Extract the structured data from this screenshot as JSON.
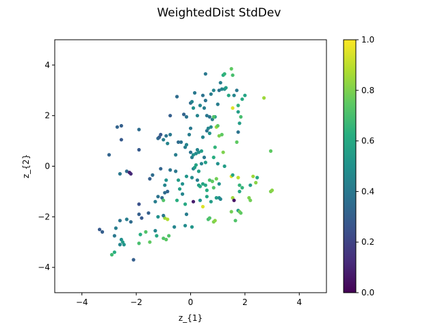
{
  "chart_data": {
    "type": "scatter",
    "title": "WeightedDist StdDev",
    "xlabel": "z_{1}",
    "ylabel": "z_{2}",
    "xlim": [
      -5,
      5
    ],
    "ylim": [
      -5,
      5
    ],
    "x_ticks": [
      -4,
      -2,
      0,
      2,
      4
    ],
    "y_ticks": [
      -4,
      -2,
      0,
      2,
      4
    ],
    "x_tick_labels": [
      "−4",
      "−2",
      "0",
      "2",
      "4"
    ],
    "y_tick_labels": [
      "−4",
      "−2",
      "0",
      "2",
      "4"
    ],
    "grid": false,
    "colormap": "viridis",
    "colorbar": {
      "range": [
        0,
        1
      ],
      "ticks": [
        0.0,
        0.2,
        0.4,
        0.6,
        0.8,
        1.0
      ],
      "tick_labels": [
        "0.0",
        "0.2",
        "0.4",
        "0.6",
        "0.8",
        "1.0"
      ]
    },
    "points": [
      [
        -3.35,
        -2.5,
        0.28
      ],
      [
        -3.25,
        -2.6,
        0.3
      ],
      [
        -2.9,
        -3.5,
        0.68
      ],
      [
        -2.8,
        -3.4,
        0.62
      ],
      [
        -2.8,
        -2.75,
        0.4
      ],
      [
        -2.75,
        -2.45,
        0.42
      ],
      [
        -2.6,
        -3.1,
        0.45
      ],
      [
        -2.55,
        -2.9,
        0.5
      ],
      [
        -2.5,
        -3.0,
        0.55
      ],
      [
        -2.45,
        -3.1,
        0.52
      ],
      [
        -2.6,
        -2.15,
        0.38
      ],
      [
        -2.35,
        -2.1,
        0.42
      ],
      [
        -2.2,
        -2.2,
        0.35
      ],
      [
        -2.1,
        -3.7,
        0.3
      ],
      [
        -1.9,
        -3.05,
        0.7
      ],
      [
        -1.85,
        -2.7,
        0.62
      ],
      [
        -1.65,
        -2.6,
        0.72
      ],
      [
        -1.5,
        -3.0,
        0.75
      ],
      [
        -1.9,
        -1.9,
        0.3
      ],
      [
        -1.8,
        -2.05,
        0.28
      ],
      [
        -1.55,
        -1.85,
        0.3
      ],
      [
        -1.3,
        -2.55,
        0.45
      ],
      [
        -1.25,
        -2.75,
        0.6
      ],
      [
        -1.0,
        -2.85,
        0.72
      ],
      [
        -0.9,
        -2.9,
        0.74
      ],
      [
        -0.8,
        -2.75,
        0.72
      ],
      [
        -0.95,
        -2.05,
        0.85
      ],
      [
        -0.85,
        -2.1,
        0.88
      ],
      [
        -1.2,
        -2.0,
        0.5
      ],
      [
        -1.0,
        -1.95,
        0.4
      ],
      [
        -0.6,
        -2.4,
        0.45
      ],
      [
        -0.2,
        -2.35,
        0.48
      ],
      [
        0.05,
        -2.4,
        0.52
      ],
      [
        -1.9,
        -1.5,
        0.25
      ],
      [
        -1.3,
        -1.4,
        0.42
      ],
      [
        -1.2,
        -1.2,
        0.38
      ],
      [
        -1.05,
        -1.25,
        0.35
      ],
      [
        -0.95,
        -1.05,
        0.35
      ],
      [
        -1.0,
        -1.35,
        0.72
      ],
      [
        -0.85,
        -1.0,
        0.32
      ],
      [
        -0.5,
        -1.35,
        0.62
      ],
      [
        -0.3,
        -1.1,
        0.45
      ],
      [
        -0.2,
        -1.5,
        0.6
      ],
      [
        -0.4,
        -0.9,
        0.55
      ],
      [
        -0.15,
        -1.9,
        0.42
      ],
      [
        0.1,
        -1.4,
        0.08
      ],
      [
        0.35,
        -1.35,
        0.5
      ],
      [
        0.45,
        -1.6,
        0.95
      ],
      [
        0.6,
        -1.2,
        0.58
      ],
      [
        0.75,
        -1.4,
        0.55
      ],
      [
        0.65,
        -2.1,
        0.7
      ],
      [
        0.7,
        -2.05,
        0.72
      ],
      [
        0.85,
        -2.2,
        0.8
      ],
      [
        0.9,
        -2.15,
        0.82
      ],
      [
        0.95,
        -1.25,
        0.55
      ],
      [
        1.05,
        -1.25,
        0.5
      ],
      [
        1.1,
        -1.3,
        0.45
      ],
      [
        1.5,
        -1.8,
        0.78
      ],
      [
        1.55,
        -1.25,
        0.85
      ],
      [
        1.6,
        -1.35,
        0.05
      ],
      [
        1.65,
        -2.15,
        0.72
      ],
      [
        1.75,
        -1.75,
        0.55
      ],
      [
        1.8,
        -1.8,
        0.78
      ],
      [
        1.85,
        -1.85,
        0.75
      ],
      [
        1.8,
        -1.0,
        0.6
      ],
      [
        1.9,
        -0.85,
        0.65
      ],
      [
        2.15,
        -1.25,
        0.8
      ],
      [
        2.2,
        -1.35,
        0.78
      ],
      [
        2.3,
        -0.4,
        0.85
      ],
      [
        2.4,
        -0.65,
        0.82
      ],
      [
        2.45,
        -0.45,
        0.6
      ],
      [
        2.2,
        -0.75,
        0.55
      ],
      [
        2.95,
        -1.0,
        0.8
      ],
      [
        3.0,
        -0.95,
        0.82
      ],
      [
        -2.6,
        -0.3,
        0.4
      ],
      [
        -2.35,
        -0.2,
        0.35
      ],
      [
        -2.25,
        -0.25,
        0.15
      ],
      [
        -2.2,
        -0.3,
        0.12
      ],
      [
        -2.25,
        -0.25,
        0.1
      ],
      [
        -1.5,
        -0.5,
        0.3
      ],
      [
        -1.4,
        -0.35,
        0.35
      ],
      [
        -1.1,
        -0.1,
        0.32
      ],
      [
        -0.95,
        -0.75,
        0.45
      ],
      [
        -0.9,
        -0.55,
        0.5
      ],
      [
        -0.75,
        -0.15,
        0.38
      ],
      [
        -0.55,
        -0.2,
        0.4
      ],
      [
        -0.45,
        -0.55,
        0.55
      ],
      [
        -0.3,
        -0.7,
        0.5
      ],
      [
        -0.15,
        -0.4,
        0.52
      ],
      [
        0.05,
        -0.45,
        0.48
      ],
      [
        0.1,
        -0.1,
        0.45
      ],
      [
        0.15,
        -0.05,
        0.55
      ],
      [
        0.2,
        0.05,
        0.58
      ],
      [
        0.25,
        -0.55,
        0.42
      ],
      [
        0.3,
        -0.75,
        0.55
      ],
      [
        0.35,
        -0.8,
        0.6
      ],
      [
        0.45,
        -0.7,
        0.58
      ],
      [
        0.55,
        -0.75,
        0.6
      ],
      [
        0.6,
        -0.95,
        0.62
      ],
      [
        0.7,
        -0.55,
        0.7
      ],
      [
        0.8,
        -0.6,
        0.75
      ],
      [
        0.85,
        -0.85,
        0.72
      ],
      [
        0.95,
        -0.5,
        0.78
      ],
      [
        1.05,
        -0.7,
        0.5
      ],
      [
        1.5,
        -0.4,
        0.95
      ],
      [
        1.75,
        -0.45,
        0.9
      ],
      [
        -3.0,
        0.45,
        0.32
      ],
      [
        -2.55,
        1.05,
        0.28
      ],
      [
        -2.7,
        1.55,
        0.32
      ],
      [
        -2.55,
        1.6,
        0.3
      ],
      [
        -1.9,
        0.65,
        0.28
      ],
      [
        -1.9,
        1.45,
        0.35
      ],
      [
        -1.2,
        1.1,
        0.35
      ],
      [
        -1.15,
        1.15,
        0.3
      ],
      [
        -1.1,
        1.25,
        0.28
      ],
      [
        -1.0,
        1.05,
        0.42
      ],
      [
        -0.9,
        1.2,
        0.38
      ],
      [
        -0.85,
        0.9,
        0.45
      ],
      [
        -0.75,
        1.25,
        0.4
      ],
      [
        -0.55,
        0.45,
        0.42
      ],
      [
        -0.45,
        0.95,
        0.35
      ],
      [
        -0.35,
        0.95,
        0.38
      ],
      [
        -0.2,
        0.75,
        0.42
      ],
      [
        -0.15,
        0.85,
        0.45
      ],
      [
        0.0,
        0.55,
        0.38
      ],
      [
        0.05,
        0.35,
        0.42
      ],
      [
        0.1,
        0.45,
        0.5
      ],
      [
        0.2,
        0.5,
        0.48
      ],
      [
        0.25,
        0.65,
        0.45
      ],
      [
        0.3,
        0.55,
        0.5
      ],
      [
        0.4,
        0.6,
        0.55
      ],
      [
        0.45,
        1.15,
        0.45
      ],
      [
        0.5,
        0.35,
        0.4
      ],
      [
        0.55,
        0.15,
        0.55
      ],
      [
        0.6,
        1.4,
        0.38
      ],
      [
        0.65,
        1.5,
        0.45
      ],
      [
        0.7,
        1.3,
        0.5
      ],
      [
        0.75,
        1.55,
        0.48
      ],
      [
        0.8,
        1.85,
        0.42
      ],
      [
        0.9,
        1.95,
        0.55
      ],
      [
        0.95,
        1.55,
        0.85
      ],
      [
        1.0,
        1.6,
        0.75
      ],
      [
        1.05,
        1.2,
        0.8
      ],
      [
        1.15,
        1.25,
        0.75
      ],
      [
        1.2,
        0.55,
        0.8
      ],
      [
        0.9,
        0.75,
        0.65
      ],
      [
        0.85,
        0.35,
        0.62
      ],
      [
        0.5,
        2.3,
        0.42
      ],
      [
        0.55,
        2.6,
        0.38
      ],
      [
        0.6,
        2.0,
        0.4
      ],
      [
        0.7,
        1.95,
        0.38
      ],
      [
        0.85,
        1.95,
        0.72
      ],
      [
        -0.05,
        1.25,
        0.42
      ],
      [
        0.0,
        1.5,
        0.4
      ],
      [
        -0.15,
        1.95,
        0.38
      ],
      [
        -0.25,
        2.05,
        0.32
      ],
      [
        0.0,
        2.5,
        0.35
      ],
      [
        0.05,
        2.55,
        0.45
      ],
      [
        0.1,
        2.3,
        0.5
      ],
      [
        0.15,
        2.9,
        0.4
      ],
      [
        0.25,
        2.0,
        0.45
      ],
      [
        0.35,
        2.4,
        0.45
      ],
      [
        -0.5,
        2.75,
        0.35
      ],
      [
        -0.75,
        2.0,
        0.3
      ],
      [
        0.45,
        2.8,
        0.38
      ],
      [
        0.55,
        3.65,
        0.4
      ],
      [
        0.75,
        2.85,
        0.42
      ],
      [
        0.85,
        3.0,
        0.45
      ],
      [
        1.0,
        2.45,
        0.42
      ],
      [
        1.05,
        3.0,
        0.38
      ],
      [
        1.1,
        3.3,
        0.42
      ],
      [
        1.15,
        3.05,
        0.45
      ],
      [
        1.25,
        3.05,
        0.5
      ],
      [
        1.3,
        3.1,
        0.55
      ],
      [
        1.2,
        3.6,
        0.62
      ],
      [
        1.25,
        3.65,
        0.65
      ],
      [
        1.4,
        2.8,
        0.6
      ],
      [
        1.5,
        3.85,
        0.75
      ],
      [
        1.55,
        3.6,
        0.7
      ],
      [
        1.55,
        2.3,
        0.95
      ],
      [
        1.6,
        2.8,
        0.45
      ],
      [
        1.7,
        3.0,
        0.4
      ],
      [
        1.75,
        2.15,
        0.55
      ],
      [
        1.8,
        1.7,
        0.55
      ],
      [
        1.75,
        2.4,
        0.65
      ],
      [
        1.85,
        1.95,
        0.7
      ],
      [
        1.9,
        2.65,
        0.6
      ],
      [
        2.0,
        2.8,
        0.58
      ],
      [
        1.75,
        1.35,
        0.38
      ],
      [
        1.7,
        0.95,
        0.75
      ],
      [
        2.7,
        2.7,
        0.85
      ],
      [
        2.95,
        0.6,
        0.75
      ],
      [
        1.25,
        0.0,
        0.55
      ],
      [
        1.55,
        -0.35,
        0.58
      ],
      [
        1.8,
        -0.75,
        0.65
      ],
      [
        1.0,
        0.1,
        0.5
      ],
      [
        0.4,
        0.1,
        0.45
      ],
      [
        0.3,
        -0.2,
        0.55
      ]
    ]
  }
}
